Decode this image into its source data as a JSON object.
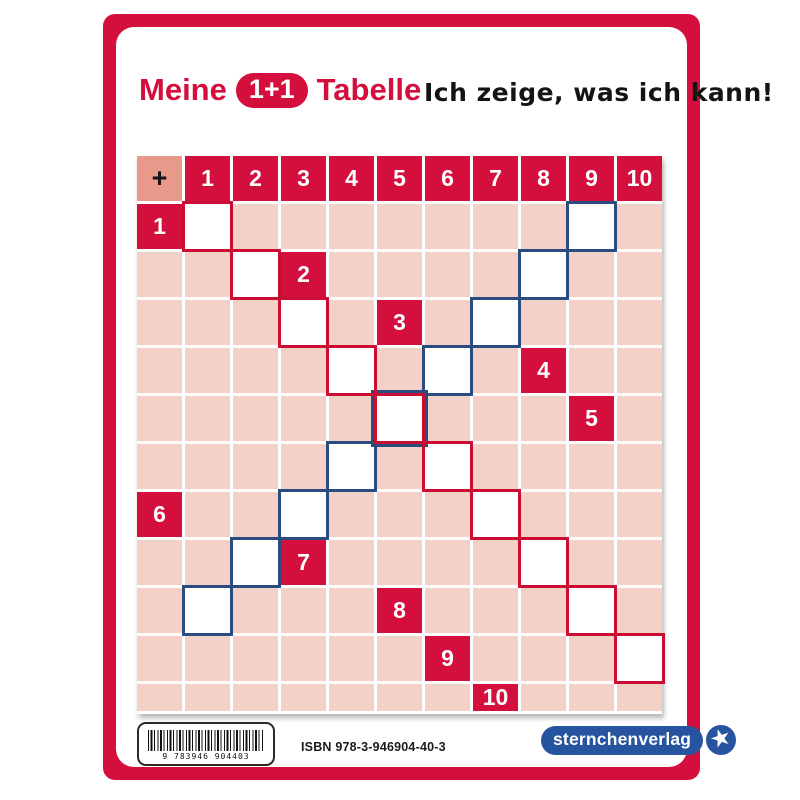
{
  "title": {
    "word_before": "Meine",
    "badge": "1+1",
    "word_after": "Tabelle"
  },
  "slogan": "Ich zeige, was ich kann!",
  "table": {
    "operator": "+",
    "column_headers": [
      "1",
      "2",
      "3",
      "4",
      "5",
      "6",
      "7",
      "8",
      "9",
      "10"
    ],
    "row_headers": [
      "1",
      "2",
      "3",
      "4",
      "5",
      "6",
      "7",
      "8",
      "9",
      "10"
    ],
    "highlights": {
      "doubles_red": [
        [
          1,
          1
        ],
        [
          2,
          2
        ],
        [
          3,
          3
        ],
        [
          4,
          4
        ],
        [
          5,
          5
        ],
        [
          6,
          6
        ],
        [
          7,
          7
        ],
        [
          8,
          8
        ],
        [
          9,
          9
        ],
        [
          10,
          10
        ]
      ],
      "sums_of_ten_blue": [
        [
          1,
          9
        ],
        [
          2,
          8
        ],
        [
          3,
          7
        ],
        [
          4,
          6
        ],
        [
          5,
          5
        ],
        [
          6,
          4
        ],
        [
          7,
          3
        ],
        [
          8,
          2
        ],
        [
          9,
          1
        ]
      ]
    }
  },
  "footer": {
    "barcode_digits": "9 783946 904403",
    "isbn": "ISBN 978-3-946904-40-3",
    "publisher": "sternchenverlag",
    "star_icon": "★"
  },
  "colors": {
    "frame_red": "#d40f3d",
    "header_red": "#d40f3d",
    "outline_red": "#c90d33",
    "outline_blue": "#2b4c80",
    "corner_salmon": "#e9998a",
    "cell_pink": "#f4d1c6",
    "logo_blue": "#27549e"
  }
}
